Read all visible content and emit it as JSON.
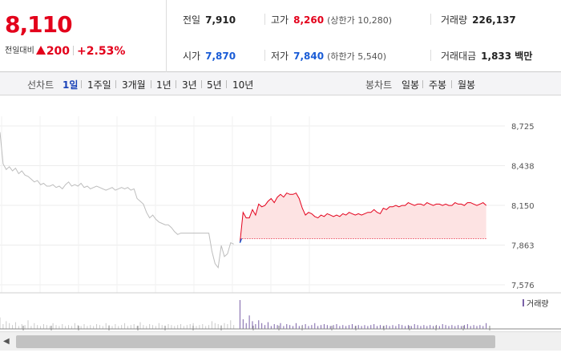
{
  "quote": {
    "current_price": "8,110",
    "change_label": "전일대비",
    "change_value": "200",
    "change_rate": "+2.53%",
    "prev_close_label": "전일",
    "prev_close": "7,910",
    "open_label": "시가",
    "open": "7,870",
    "high_label": "고가",
    "high": "8,260",
    "upper_limit": "(상한가 10,280)",
    "low_label": "저가",
    "low": "7,840",
    "lower_limit": "(하한가 5,540)",
    "volume_label": "거래량",
    "volume": "226,137",
    "amount_label": "거래대금",
    "amount": "1,833 백만"
  },
  "line_tabs": {
    "title": "선차트",
    "items": [
      "1일",
      "1주일",
      "3개월",
      "1년",
      "3년",
      "5년",
      "10년"
    ],
    "active": 0
  },
  "candle_tabs": {
    "title": "봉차트",
    "items": [
      "일봉",
      "주봉",
      "월봉"
    ]
  },
  "colors": {
    "up": "#e3001b",
    "down": "#1a5cd6",
    "prev_line": "#bdbdbd",
    "volume": "#7b62a8"
  },
  "chart_data": {
    "type": "line",
    "y_ticks": [
      "8,725",
      "8,438",
      "8,150",
      "7,863",
      "7,576"
    ],
    "ylim": [
      7576,
      8725
    ],
    "baseline": 7910,
    "volume_legend": "거래량",
    "previous_day_series": {
      "x": [
        0,
        1,
        2,
        3,
        4,
        5,
        6,
        7,
        8,
        9,
        10,
        11,
        12,
        13,
        14,
        15,
        16,
        17,
        18,
        19,
        20,
        21,
        22,
        23,
        24,
        25,
        26,
        27,
        28,
        29,
        30,
        31,
        32,
        33,
        34,
        35,
        36,
        37,
        38,
        39,
        40,
        41,
        42,
        43,
        44,
        45,
        46,
        47,
        48,
        49,
        50,
        51,
        52,
        53,
        54,
        55,
        56,
        57,
        58,
        59,
        60,
        61,
        62,
        63,
        64,
        65,
        66,
        67,
        68,
        69,
        70,
        71,
        72,
        73,
        74,
        75
      ],
      "y": [
        8680,
        8450,
        8410,
        8430,
        8400,
        8420,
        8380,
        8400,
        8370,
        8360,
        8340,
        8320,
        8330,
        8300,
        8310,
        8290,
        8290,
        8300,
        8280,
        8290,
        8270,
        8300,
        8320,
        8290,
        8300,
        8290,
        8310,
        8280,
        8290,
        8270,
        8280,
        8290,
        8280,
        8270,
        8260,
        8270,
        8280,
        8260,
        8270,
        8280,
        8270,
        8280,
        8260,
        8270,
        8200,
        8180,
        8160,
        8100,
        8060,
        8080,
        8050,
        8030,
        8020,
        8010,
        8010,
        7990,
        7960,
        7940,
        7950,
        7950,
        7950,
        7950,
        7950,
        7950,
        7950,
        7950,
        7950,
        7950,
        7820,
        7730,
        7700,
        7860,
        7780,
        7800,
        7880,
        7870
      ]
    },
    "today_series": {
      "x": [
        77,
        78,
        79,
        80,
        81,
        82,
        83,
        84,
        85,
        86,
        87,
        88,
        89,
        90,
        91,
        92,
        93,
        94,
        95,
        96,
        97,
        98,
        99,
        100,
        101,
        102,
        103,
        104,
        105,
        106,
        107,
        108,
        109,
        110,
        111,
        112,
        113,
        114,
        115,
        116,
        117,
        118,
        119,
        120,
        121,
        122,
        123,
        124,
        125,
        126,
        127,
        128,
        129,
        130,
        131,
        132,
        133,
        134,
        135,
        136,
        137,
        138,
        139,
        140,
        141,
        142,
        143,
        144,
        145,
        146,
        147,
        148,
        149,
        150,
        151,
        152,
        153,
        154,
        155,
        156
      ],
      "y": [
        7880,
        8100,
        8060,
        8060,
        8120,
        8080,
        8160,
        8140,
        8150,
        8180,
        8200,
        8170,
        8210,
        8230,
        8210,
        8240,
        8230,
        8230,
        8240,
        8200,
        8130,
        8080,
        8100,
        8090,
        8070,
        8060,
        8080,
        8070,
        8090,
        8080,
        8070,
        8080,
        8070,
        8090,
        8080,
        8100,
        8090,
        8080,
        8090,
        8080,
        8090,
        8100,
        8100,
        8120,
        8100,
        8090,
        8130,
        8120,
        8140,
        8140,
        8150,
        8140,
        8150,
        8150,
        8170,
        8160,
        8150,
        8160,
        8160,
        8150,
        8170,
        8160,
        8150,
        8160,
        8160,
        8150,
        8160,
        8150,
        8150,
        8170,
        8160,
        8160,
        8150,
        8170,
        8170,
        8160,
        8150,
        8160,
        8170,
        8150
      ]
    },
    "volume": {
      "previous_day": [
        12,
        5,
        8,
        6,
        4,
        7,
        3,
        5,
        4,
        9,
        3,
        6,
        4,
        3,
        5,
        4,
        3,
        6,
        4,
        3,
        5,
        3,
        4,
        3,
        6,
        4,
        3,
        5,
        3,
        4,
        3,
        5,
        4,
        3,
        6,
        4,
        3,
        5,
        3,
        4,
        6,
        3,
        4,
        5,
        3,
        7,
        4,
        3,
        5,
        4,
        3,
        6,
        4,
        3,
        5,
        4,
        3,
        4,
        5,
        3,
        4,
        5,
        6,
        3,
        4,
        5,
        3,
        4,
        8,
        6,
        5,
        4,
        6,
        5,
        9,
        4
      ],
      "today": [
        30,
        10,
        6,
        14,
        8,
        5,
        9,
        6,
        4,
        7,
        3,
        5,
        4,
        6,
        3,
        5,
        4,
        3,
        6,
        3,
        4,
        5,
        3,
        4,
        6,
        3,
        4,
        5,
        4,
        3,
        4,
        5,
        3,
        4,
        3,
        4,
        5,
        3,
        4,
        3,
        4,
        3,
        4,
        5,
        3,
        4,
        3,
        4,
        3,
        4,
        3,
        5,
        4,
        3,
        4,
        3,
        5,
        4,
        3,
        4,
        3,
        4,
        3,
        4,
        3,
        5,
        4,
        3,
        4,
        3,
        4,
        3,
        4,
        5,
        3,
        4,
        3,
        4,
        3,
        6
      ]
    }
  }
}
